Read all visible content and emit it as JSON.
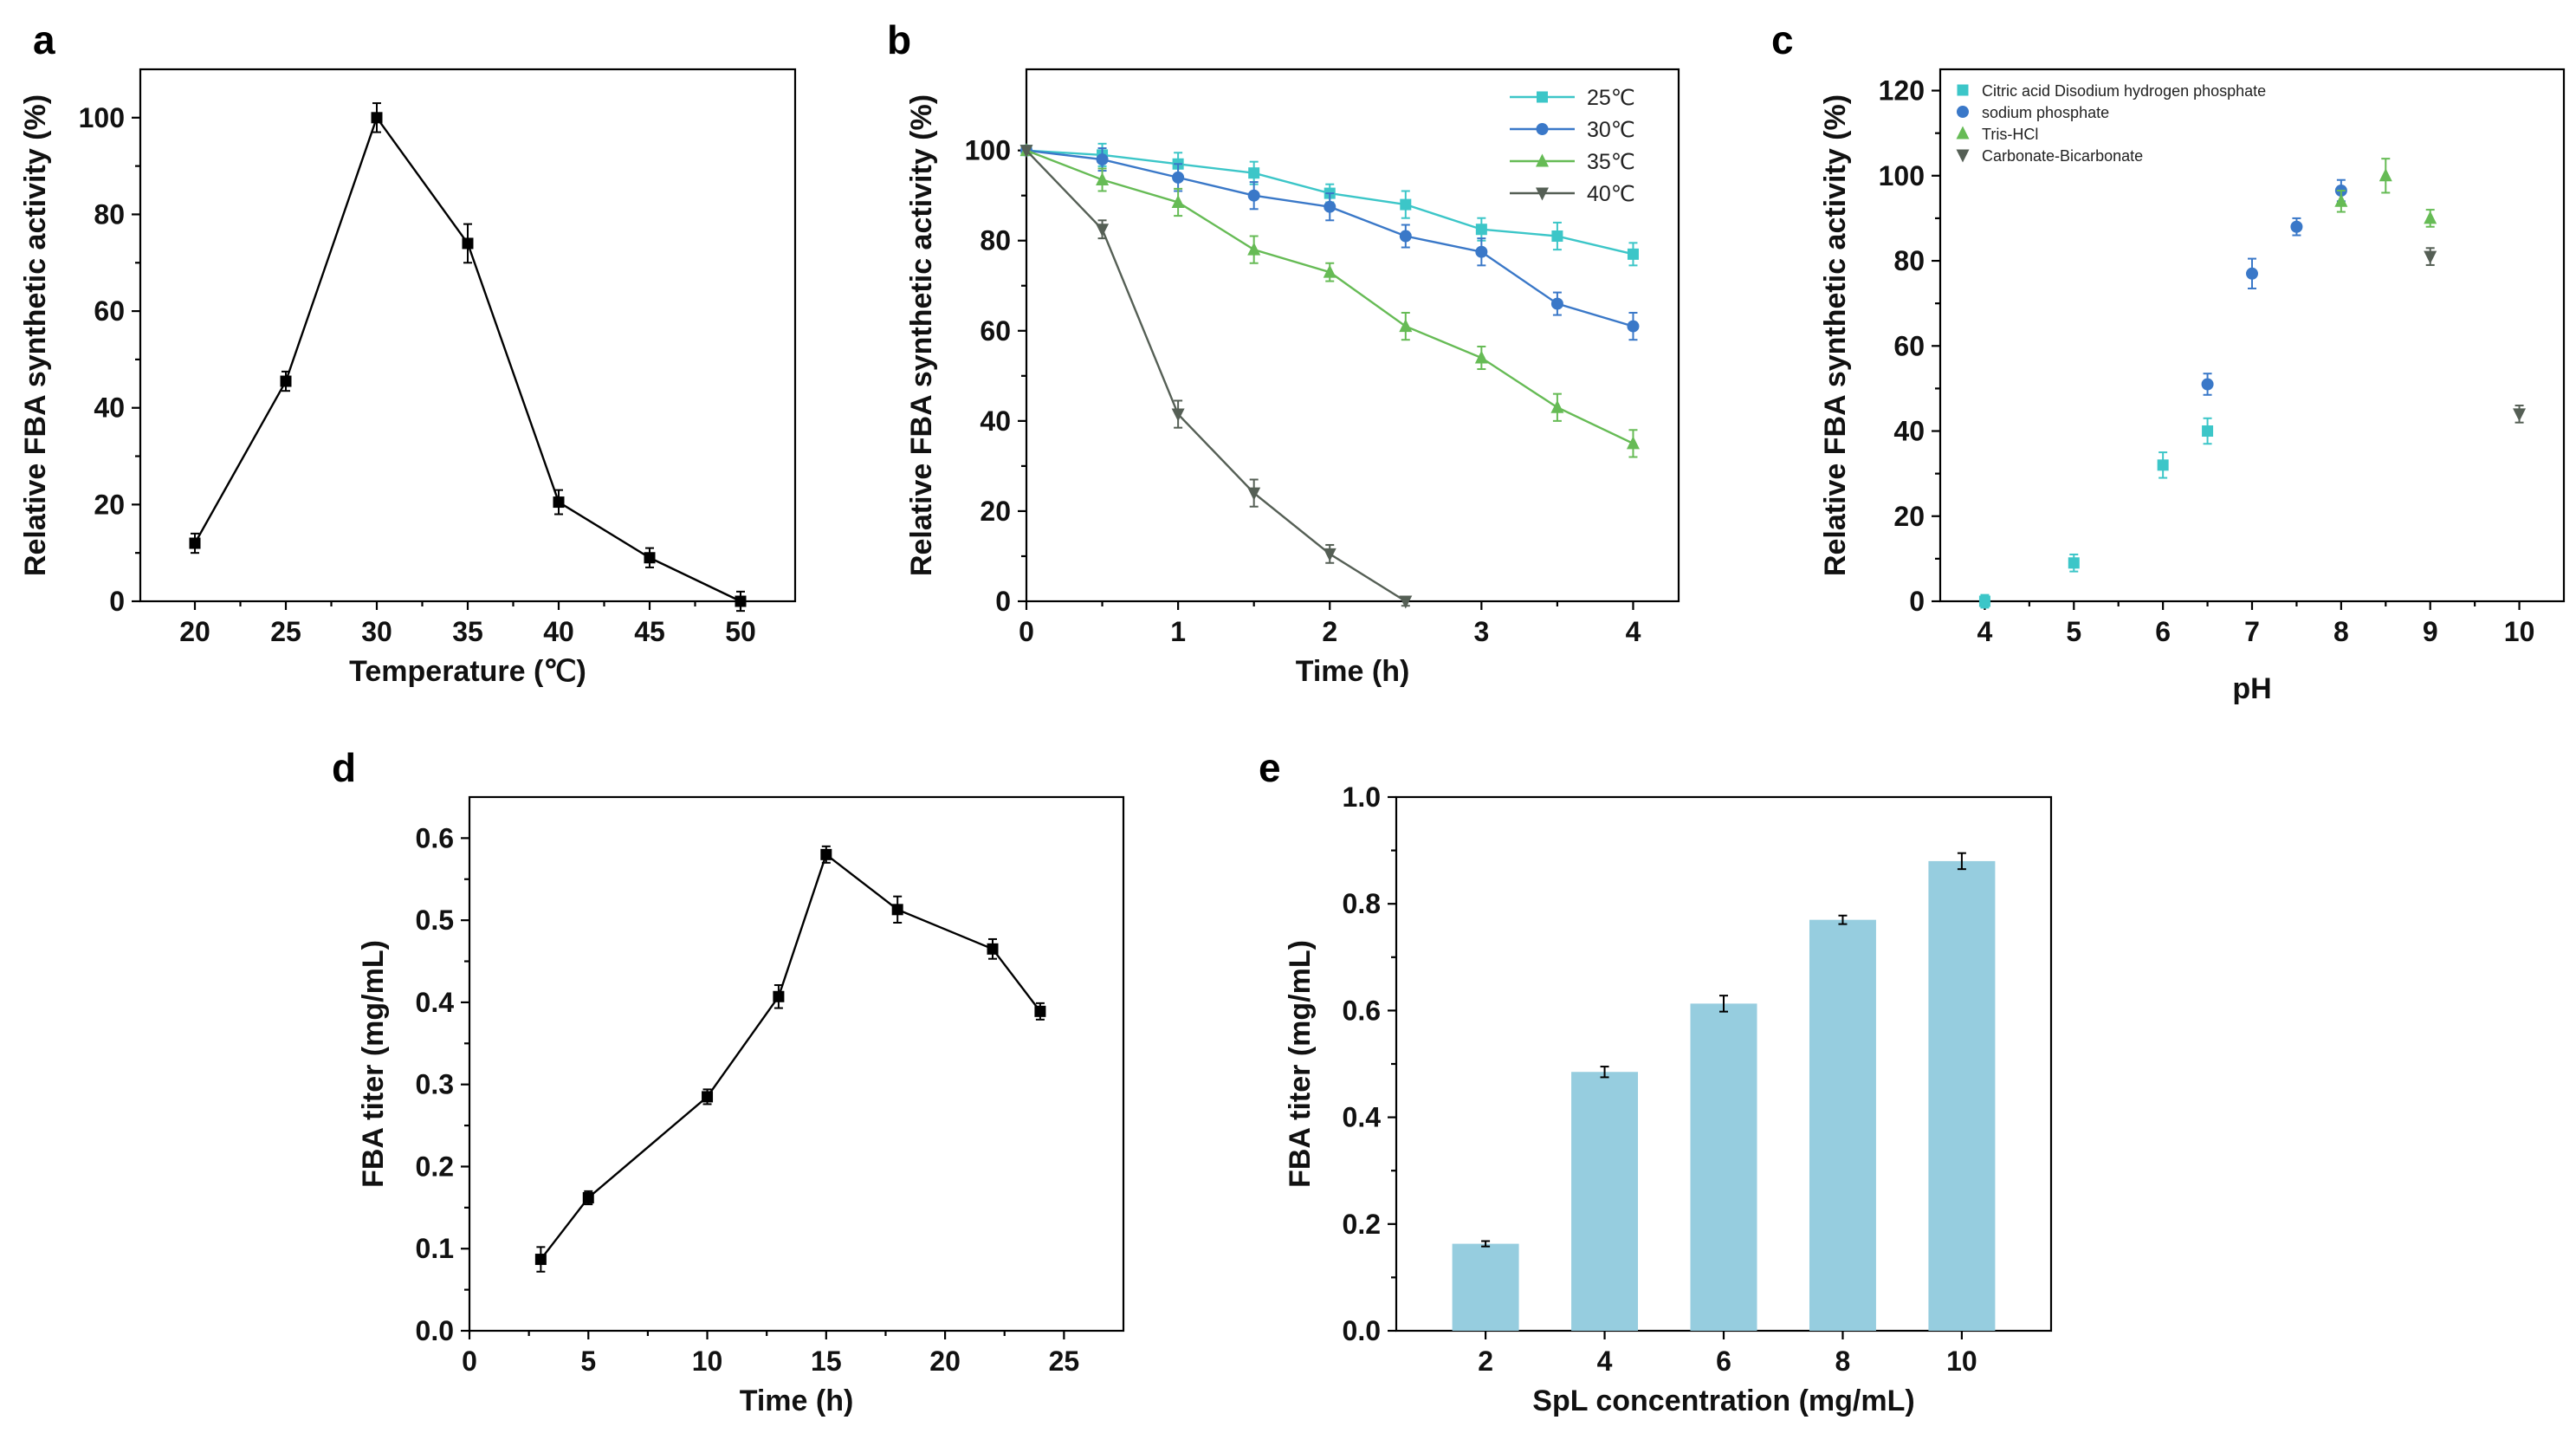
{
  "chart_data": [
    {
      "panel": "a",
      "type": "line",
      "title": "",
      "xlabel": "Temperature (℃)",
      "ylabel": "Relative FBA synthetic activity (%)",
      "xlim": [
        17,
        53
      ],
      "ylim": [
        0,
        110
      ],
      "xticks": [
        20,
        25,
        30,
        35,
        40,
        45,
        50
      ],
      "yticks": [
        0,
        20,
        40,
        60,
        80,
        100
      ],
      "series": [
        {
          "name": "activity",
          "color": "#000000",
          "marker": "square",
          "x": [
            20,
            25,
            30,
            35,
            40,
            45,
            50
          ],
          "values": [
            12,
            45.5,
            100,
            74,
            20.5,
            9,
            0
          ],
          "errors": [
            2,
            2,
            3,
            4,
            2.5,
            2,
            2
          ]
        }
      ]
    },
    {
      "panel": "b",
      "type": "line",
      "title": "",
      "xlabel": "Time (h)",
      "ylabel": "Relative FBA synthetic activity (%)",
      "xlim": [
        0,
        4.3
      ],
      "ylim": [
        0,
        118
      ],
      "xticks": [
        0,
        1,
        2,
        3,
        4
      ],
      "yticks": [
        0,
        20,
        40,
        60,
        80,
        100
      ],
      "legend": "top-right",
      "series": [
        {
          "name": "25℃",
          "color": "#3CC6C8",
          "marker": "square",
          "x": [
            0,
            0.5,
            1,
            1.5,
            2,
            2.5,
            3,
            3.5,
            4
          ],
          "values": [
            100,
            99,
            97,
            95,
            90.5,
            88,
            82.5,
            81,
            77
          ],
          "errors": [
            0,
            2.5,
            2.5,
            2.5,
            2,
            3,
            2.5,
            3,
            2.5
          ]
        },
        {
          "name": "30℃",
          "color": "#3A78C8",
          "marker": "circle",
          "x": [
            0,
            0.5,
            1,
            1.5,
            2,
            2.5,
            3,
            3.5,
            4
          ],
          "values": [
            100,
            98,
            94,
            90,
            87.5,
            81,
            77.5,
            66,
            61
          ],
          "errors": [
            0,
            2.5,
            3,
            3,
            3,
            2.5,
            3,
            2.5,
            3
          ]
        },
        {
          "name": "35℃",
          "color": "#66BB55",
          "marker": "triangle-up",
          "x": [
            0,
            0.5,
            1,
            1.5,
            2,
            2.5,
            3,
            3.5,
            4
          ],
          "values": [
            100,
            93.5,
            88.5,
            78,
            73,
            61,
            54,
            43,
            35
          ],
          "errors": [
            0,
            2.5,
            3,
            3,
            2,
            3,
            2.5,
            3,
            3
          ]
        },
        {
          "name": "40℃",
          "color": "#555F55",
          "marker": "triangle-down",
          "x": [
            0,
            0.5,
            1,
            1.5,
            2,
            2.5
          ],
          "values": [
            100,
            82.5,
            41.5,
            24,
            10.5,
            0
          ],
          "errors": [
            0,
            2,
            3,
            3,
            2,
            1
          ]
        }
      ]
    },
    {
      "panel": "c",
      "type": "scatter",
      "title": "",
      "xlabel": "pH",
      "ylabel": "Relative FBA synthetic activity (%)",
      "xlim": [
        3.5,
        10.5
      ],
      "ylim": [
        0,
        125
      ],
      "xticks": [
        4,
        5,
        6,
        7,
        8,
        9,
        10
      ],
      "yticks": [
        0,
        20,
        40,
        60,
        80,
        100,
        120
      ],
      "legend": "top-left",
      "series": [
        {
          "name": "Citric acid Disodium hydrogen phosphate",
          "color": "#3CC6C8",
          "marker": "square",
          "x": [
            4,
            5,
            6,
            6.5
          ],
          "values": [
            0,
            9,
            32,
            40
          ],
          "errors": [
            1.5,
            2,
            3,
            3
          ]
        },
        {
          "name": "sodium phosphate",
          "color": "#3A78C8",
          "marker": "circle",
          "x": [
            6.5,
            7,
            7.5,
            8
          ],
          "values": [
            51,
            77,
            88,
            96.5
          ],
          "errors": [
            2.5,
            3.5,
            2,
            2.5
          ]
        },
        {
          "name": "Tris-HCl",
          "color": "#66BB55",
          "marker": "triangle-up",
          "x": [
            8,
            8.5,
            9
          ],
          "values": [
            94,
            100,
            90
          ],
          "errors": [
            2.5,
            4,
            2
          ]
        },
        {
          "name": "Carbonate-Bicarbonate",
          "color": "#555F55",
          "marker": "triangle-down",
          "x": [
            9,
            10
          ],
          "values": [
            81,
            44
          ],
          "errors": [
            2,
            2
          ]
        }
      ]
    },
    {
      "panel": "d",
      "type": "line",
      "title": "",
      "xlabel": "Time (h)",
      "ylabel": "FBA titer (mg/mL)",
      "xlim": [
        0,
        27.5
      ],
      "ylim": [
        0,
        0.65
      ],
      "xticks": [
        0,
        5,
        10,
        15,
        20,
        25
      ],
      "yticks": [
        0.0,
        0.1,
        0.2,
        0.3,
        0.4,
        0.5,
        0.6
      ],
      "ytick_labels": [
        "0.0",
        "0.1",
        "0.2",
        "0.3",
        "0.4",
        "0.5",
        "0.6"
      ],
      "series": [
        {
          "name": "titer",
          "color": "#000000",
          "marker": "square",
          "x": [
            3,
            5,
            10,
            13,
            15,
            18,
            22,
            24
          ],
          "values": [
            0.087,
            0.162,
            0.285,
            0.407,
            0.58,
            0.513,
            0.465,
            0.389
          ],
          "errors": [
            0.015,
            0.008,
            0.009,
            0.014,
            0.01,
            0.016,
            0.012,
            0.01
          ]
        }
      ]
    },
    {
      "panel": "e",
      "type": "bar",
      "title": "",
      "xlabel": "SpL concentration (mg/mL)",
      "ylabel": "FBA titer (mg/mL)",
      "ylim": [
        0,
        1.0
      ],
      "yticks": [
        0.0,
        0.2,
        0.4,
        0.6,
        0.8,
        1.0
      ],
      "ytick_labels": [
        "0.0",
        "0.2",
        "0.4",
        "0.6",
        "0.8",
        "1.0"
      ],
      "categories": [
        "2",
        "4",
        "6",
        "8",
        "10"
      ],
      "color": "#96CDDF",
      "values": [
        0.163,
        0.485,
        0.613,
        0.77,
        0.88
      ],
      "errors": [
        0.005,
        0.01,
        0.015,
        0.008,
        0.015
      ]
    }
  ]
}
